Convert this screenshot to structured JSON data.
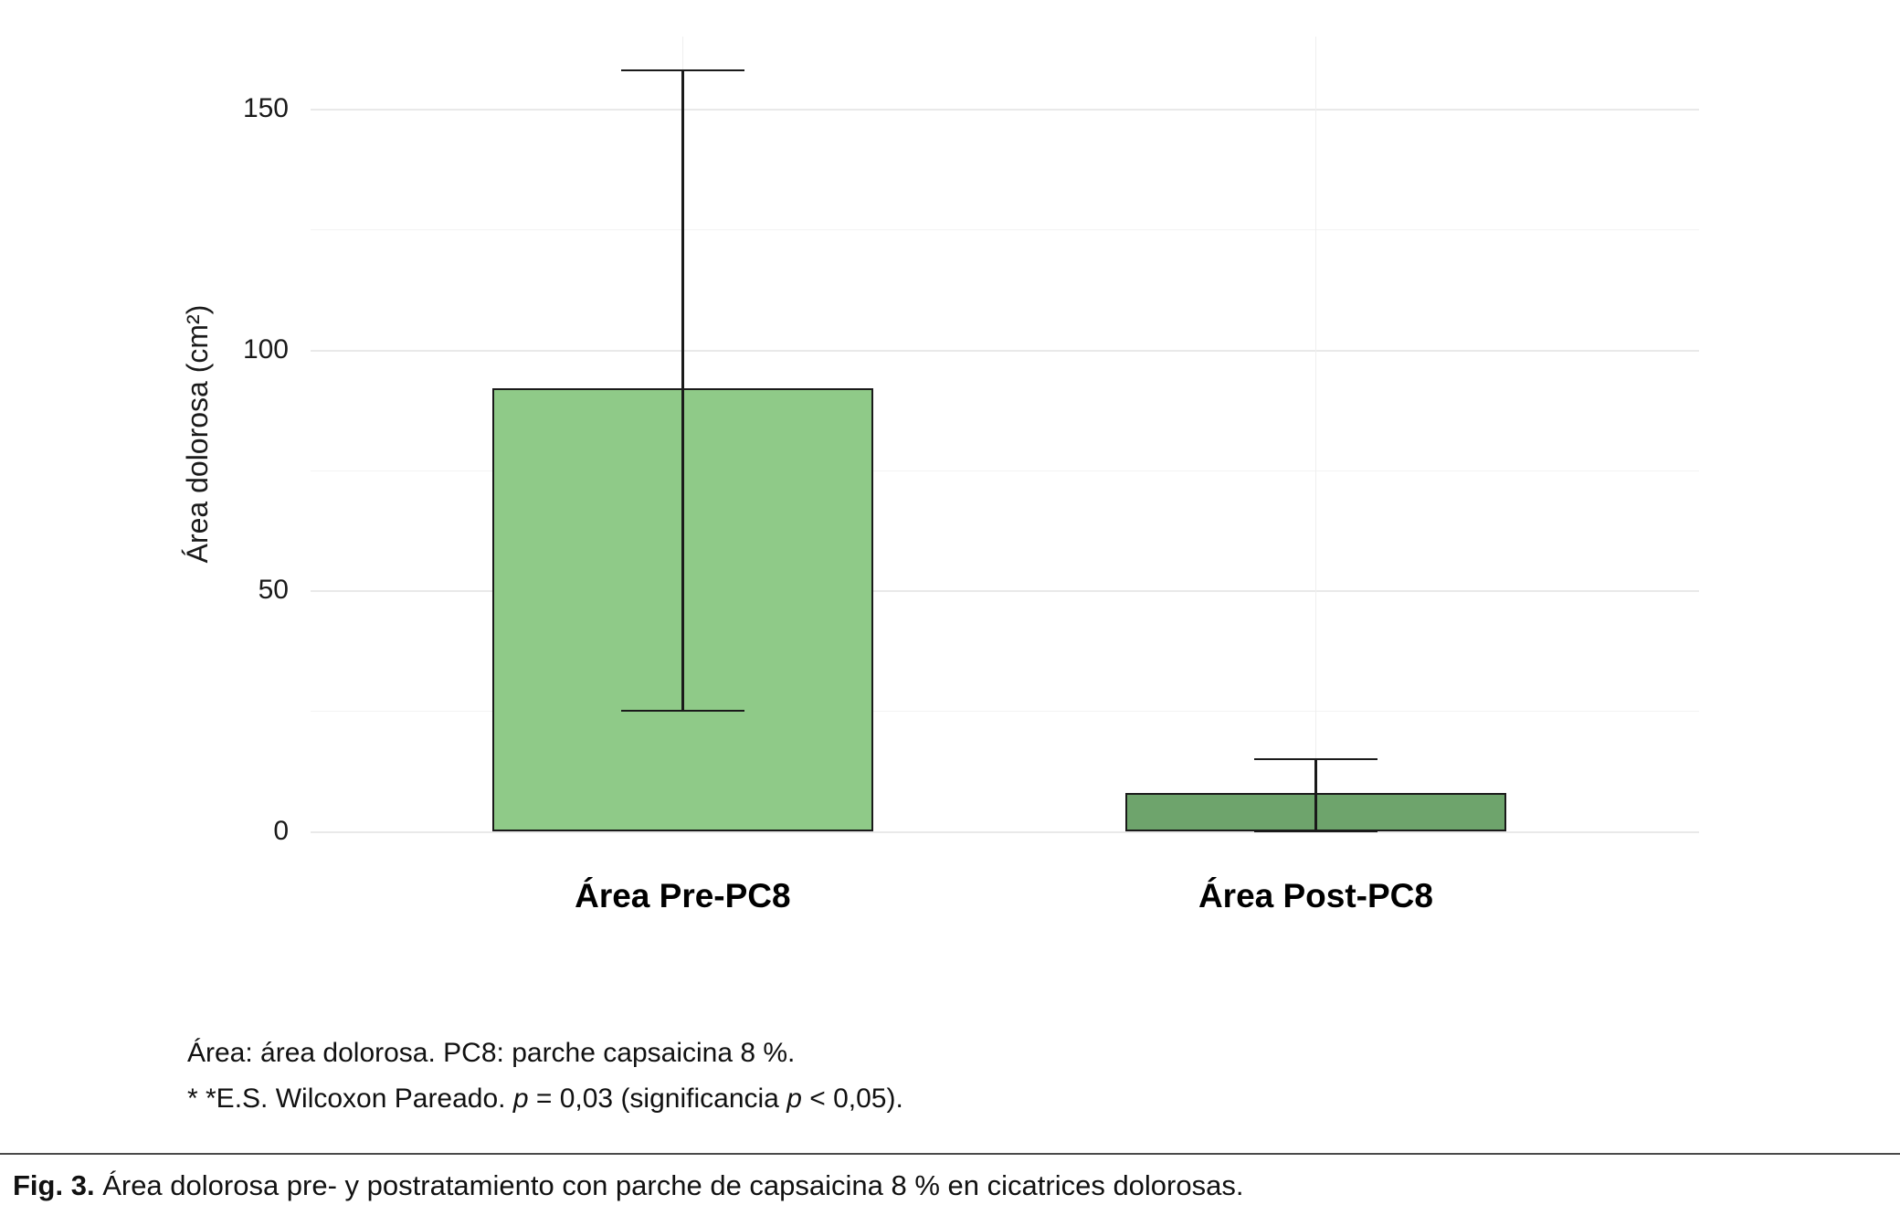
{
  "chart_data": {
    "type": "bar",
    "categories": [
      "Área Pre-PC8",
      "Área Post-PC8"
    ],
    "values": [
      92,
      8
    ],
    "error_low": [
      25,
      0
    ],
    "error_high": [
      158,
      15
    ],
    "title": "",
    "xlabel": "",
    "ylabel": "Área dolorosa (cm²)",
    "ylim": [
      0,
      165
    ],
    "yticks": [
      0,
      50,
      100,
      150
    ],
    "yticks_minor": [
      25,
      75,
      125
    ],
    "grid": "horizontal major and minor, faint vertical at category centers",
    "legend": "none",
    "bar_colors": [
      "#8FCA88",
      "#6EA46C"
    ],
    "bar_border_color": "#1a1a1a",
    "error_bar_color": "#1a1a1a"
  },
  "footnotes": {
    "line1": "Área: área dolorosa. PC8: parche capsaicina 8 %.",
    "line2_parts": [
      {
        "text": "* *E.S. Wilcoxon Pareado. ",
        "italic": false
      },
      {
        "text": "p",
        "italic": true
      },
      {
        "text": " = 0,03 (significancia ",
        "italic": false
      },
      {
        "text": "p",
        "italic": true
      },
      {
        "text": " < 0,05).",
        "italic": false
      }
    ]
  },
  "caption": {
    "label": "Fig. 3.",
    "text": " Área dolorosa pre- y postratamiento con parche de capsaicina 8 % en cicatrices dolorosas."
  }
}
